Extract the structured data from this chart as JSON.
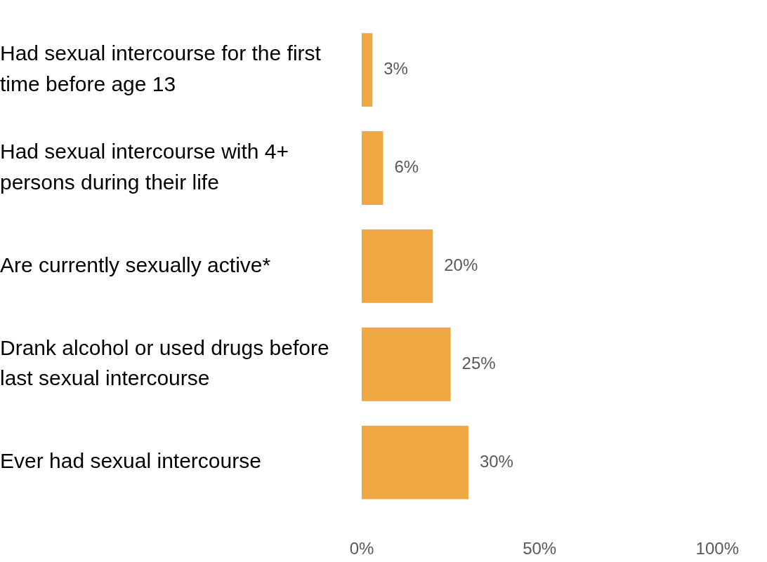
{
  "chart_data": {
    "type": "bar",
    "orientation": "horizontal",
    "categories": [
      "Had sexual intercourse for the first time before age 13",
      "Had sexual intercourse with 4+ persons during their life",
      "Are currently sexually active*",
      "Drank alcohol or used drugs before last sexual intercourse",
      "Ever had sexual intercourse"
    ],
    "values": [
      3,
      6,
      20,
      25,
      30
    ],
    "value_labels": [
      "3%",
      "6%",
      "20%",
      "25%",
      "30%"
    ],
    "color": "#f0a742",
    "xlim": [
      0,
      100
    ],
    "xticks": [
      {
        "value": 0,
        "label": "0%"
      },
      {
        "value": 50,
        "label": "50%"
      },
      {
        "value": 100,
        "label": "100%"
      }
    ],
    "grid": false,
    "legend": false
  }
}
